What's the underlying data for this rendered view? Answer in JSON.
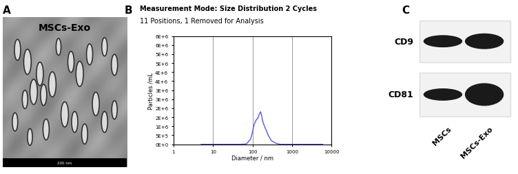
{
  "panels": {
    "A": {
      "label": "A",
      "title": "MSCs-Exo",
      "scale_bar": "200 nm"
    },
    "B": {
      "label": "B"
    },
    "C": {
      "label": "C",
      "rows": [
        "CD9",
        "CD81"
      ],
      "lanes": [
        "MSCs",
        "MSCs-Exo"
      ]
    }
  },
  "chart_data": {
    "type": "line",
    "title": "Measurement Mode: Size Distribution 2 Cycles",
    "subtitle": "11 Positions, 1 Removed for Analysis",
    "x_label": "Diameter / nm",
    "y_label": "Particles /mL",
    "x": [
      5,
      20,
      50,
      70,
      90,
      100,
      110,
      120,
      130,
      140,
      150,
      160,
      170,
      180,
      200,
      220,
      250,
      300,
      400,
      500,
      6000
    ],
    "values": [
      0,
      0,
      0,
      20000,
      300000,
      700000,
      1100000,
      1300000,
      1400000,
      1500000,
      1700000,
      1800000,
      1600000,
      1300000,
      1000000,
      800000,
      500000,
      200000,
      50000,
      0,
      0
    ],
    "color": "#5555dd",
    "log": "x",
    "xlim": [
      1,
      10000
    ],
    "xticks": [
      1,
      10,
      100,
      1000,
      10000
    ],
    "ylim": [
      0,
      6000000
    ],
    "yticks": [
      {
        "value": 0,
        "label": "0E+0"
      },
      {
        "value": 500000,
        "label": "5E+5"
      },
      {
        "value": 1000000,
        "label": "1E+6"
      },
      {
        "value": 1500000,
        "label": "2E+6"
      },
      {
        "value": 2000000,
        "label": "2E+6"
      },
      {
        "value": 2500000,
        "label": "3E+6"
      },
      {
        "value": 3000000,
        "label": "3E+6"
      },
      {
        "value": 3500000,
        "label": "4E+6"
      },
      {
        "value": 4000000,
        "label": "4E+6"
      },
      {
        "value": 4500000,
        "label": "5E+6"
      },
      {
        "value": 5000000,
        "label": "5E+6"
      },
      {
        "value": 5500000,
        "label": "6E+6"
      },
      {
        "value": 6000000,
        "label": "6E+6"
      }
    ],
    "grid": "x"
  }
}
